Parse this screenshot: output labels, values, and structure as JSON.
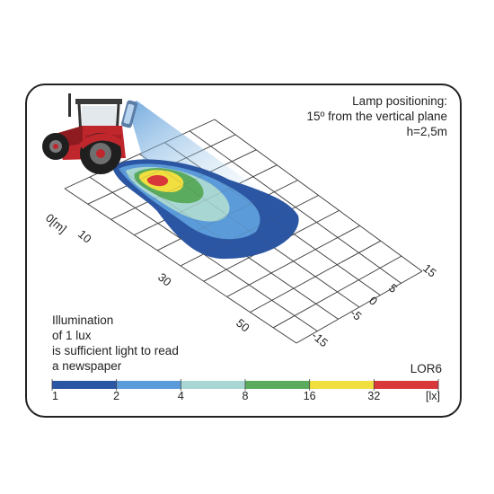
{
  "lamp_positioning": {
    "line1": "Lamp positioning:",
    "line2": "15º from the vertical plane",
    "line3": "h=2,5m"
  },
  "lux_note": {
    "line1": "Illumination",
    "line2": "of 1 lux",
    "line3": "is sufficient light to read",
    "line4": "a newspaper"
  },
  "model": "LOR6",
  "distance_axis": {
    "ticks": [
      {
        "label": "0[m]",
        "value": 0
      },
      {
        "label": "10",
        "value": 10
      },
      {
        "label": "30",
        "value": 30
      },
      {
        "label": "50",
        "value": 50
      }
    ]
  },
  "lateral_axis": {
    "ticks": [
      {
        "label": "15",
        "value": 15
      },
      {
        "label": "5",
        "value": 5
      },
      {
        "label": "0",
        "value": 0
      },
      {
        "label": "-5",
        "value": -5
      },
      {
        "label": "-15",
        "value": -15
      }
    ]
  },
  "lux_scale": {
    "unit": "[lx]",
    "boundaries": [
      "1",
      "2",
      "4",
      "8",
      "16",
      "32"
    ],
    "colors": [
      "#2b56a4",
      "#5b9bd9",
      "#a8d6d2",
      "#5aab5e",
      "#f0df3f",
      "#d9383a"
    ]
  },
  "colors": {
    "lux_1": "#2b56a4",
    "lux_2": "#5b9bd9",
    "lux_4": "#a8d6d2",
    "lux_8": "#5aab5e",
    "lux_16": "#f0df3f",
    "lux_32": "#d9383a",
    "tractor_red": "#c0272d"
  }
}
